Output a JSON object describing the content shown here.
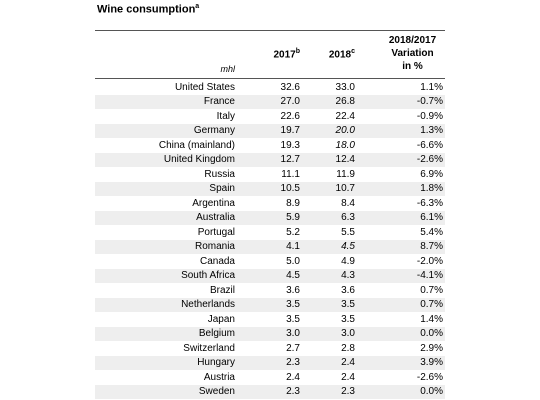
{
  "header": {
    "title": "Wine consumption",
    "title_note": "a"
  },
  "table": {
    "unit": "mhl",
    "columns": [
      {
        "text": "2017",
        "note": "b"
      },
      {
        "text": "2018",
        "note": "c"
      },
      {
        "lines": [
          "2018/2017",
          "Variation",
          "in %"
        ]
      }
    ],
    "rows": [
      {
        "country": "United States",
        "y2017": "32.6",
        "y2018": "33.0",
        "variation": "1.1%"
      },
      {
        "country": "France",
        "y2017": "27.0",
        "y2018": "26.8",
        "variation": "-0.7%"
      },
      {
        "country": "Italy",
        "y2017": "22.6",
        "y2018": "22.4",
        "variation": "-0.9%"
      },
      {
        "country": "Germany",
        "y2017": "19.7",
        "y2018": "20.0",
        "variation": "1.3%",
        "italic": true
      },
      {
        "country": "China (mainland)",
        "y2017": "19.3",
        "y2018": "18.0",
        "variation": "-6.6%",
        "italic": true
      },
      {
        "country": "United Kingdom",
        "y2017": "12.7",
        "y2018": "12.4",
        "variation": "-2.6%"
      },
      {
        "country": "Russia",
        "y2017": "11.1",
        "y2018": "11.9",
        "variation": "6.9%"
      },
      {
        "country": "Spain",
        "y2017": "10.5",
        "y2018": "10.7",
        "variation": "1.8%"
      },
      {
        "country": "Argentina",
        "y2017": "8.9",
        "y2018": "8.4",
        "variation": "-6.3%"
      },
      {
        "country": "Australia",
        "y2017": "5.9",
        "y2018": "6.3",
        "variation": "6.1%"
      },
      {
        "country": "Portugal",
        "y2017": "5.2",
        "y2018": "5.5",
        "variation": "5.4%"
      },
      {
        "country": "Romania",
        "y2017": "4.1",
        "y2018": "4.5",
        "variation": "8.7%",
        "italic": true
      },
      {
        "country": "Canada",
        "y2017": "5.0",
        "y2018": "4.9",
        "variation": "-2.0%"
      },
      {
        "country": "South Africa",
        "y2017": "4.5",
        "y2018": "4.3",
        "variation": "-4.1%"
      },
      {
        "country": "Brazil",
        "y2017": "3.6",
        "y2018": "3.6",
        "variation": "0.7%"
      },
      {
        "country": "Netherlands",
        "y2017": "3.5",
        "y2018": "3.5",
        "variation": "0.7%"
      },
      {
        "country": "Japan",
        "y2017": "3.5",
        "y2018": "3.5",
        "variation": "1.4%"
      },
      {
        "country": "Belgium",
        "y2017": "3.0",
        "y2018": "3.0",
        "variation": "0.0%"
      },
      {
        "country": "Switzerland",
        "y2017": "2.7",
        "y2018": "2.8",
        "variation": "2.9%"
      },
      {
        "country": "Hungary",
        "y2017": "2.3",
        "y2018": "2.4",
        "variation": "3.9%"
      },
      {
        "country": "Austria",
        "y2017": "2.4",
        "y2018": "2.4",
        "variation": "-2.6%"
      },
      {
        "country": "Sweden",
        "y2017": "2.3",
        "y2018": "2.3",
        "variation": "0.0%"
      }
    ]
  }
}
